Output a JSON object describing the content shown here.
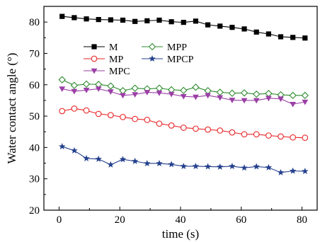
{
  "chart_data": {
    "type": "line",
    "title": "",
    "xlabel": "time (s)",
    "ylabel": "Water contact angle (°)",
    "xlim": [
      -5,
      85
    ],
    "ylim": [
      20,
      85
    ],
    "xticks": [
      0,
      20,
      40,
      60,
      80
    ],
    "yticks": [
      20,
      30,
      40,
      50,
      60,
      70,
      80
    ],
    "x_tick_labels": [
      "0",
      "20",
      "40",
      "60",
      "80"
    ],
    "y_tick_labels": [
      "20",
      "30",
      "40",
      "50",
      "60",
      "70",
      "80"
    ],
    "grid": false,
    "legend_placement": "top-center",
    "x": [
      1,
      5,
      9,
      13,
      17,
      21,
      25,
      29,
      33,
      37,
      41,
      45,
      49,
      53,
      57,
      61,
      65,
      69,
      73,
      77,
      81
    ],
    "series": [
      {
        "name": "M",
        "color": "#000000",
        "marker": "square-filled",
        "values": [
          81.8,
          81.4,
          81.0,
          80.8,
          80.7,
          80.6,
          80.2,
          80.4,
          80.6,
          80.1,
          79.9,
          80.3,
          79.1,
          78.7,
          78.3,
          77.8,
          76.8,
          76.2,
          75.3,
          75.1,
          74.9
        ]
      },
      {
        "name": "MPP",
        "color": "#2e8b2e",
        "marker": "diamond-open",
        "values": [
          61.6,
          59.8,
          60.2,
          60.1,
          59.6,
          58.1,
          58.9,
          58.7,
          58.9,
          58.4,
          58.2,
          59.2,
          58.1,
          57.6,
          57.3,
          57.4,
          57.0,
          57.2,
          56.8,
          56.6,
          56.6
        ]
      },
      {
        "name": "MP",
        "color": "#e8262a",
        "marker": "circle-open",
        "values": [
          51.6,
          52.4,
          51.8,
          50.7,
          50.3,
          49.7,
          49.1,
          48.8,
          47.6,
          47.0,
          46.3,
          46.0,
          45.7,
          45.4,
          44.8,
          44.2,
          44.2,
          43.8,
          43.5,
          43.2,
          43.1
        ]
      },
      {
        "name": "MPCP",
        "color": "#24408e",
        "marker": "star-filled",
        "values": [
          40.3,
          39.0,
          36.5,
          36.3,
          34.5,
          36.2,
          35.6,
          34.9,
          34.9,
          34.6,
          34.0,
          34.0,
          33.9,
          33.8,
          34.0,
          33.5,
          33.9,
          33.6,
          32.0,
          32.5,
          32.4
        ]
      },
      {
        "name": "MPC",
        "color": "#9b3fa6",
        "marker": "triangle-down-filled",
        "values": [
          58.7,
          57.9,
          58.3,
          58.7,
          57.8,
          56.6,
          56.9,
          57.6,
          57.4,
          57.0,
          56.3,
          56.1,
          56.6,
          55.9,
          55.1,
          55.0,
          55.0,
          55.7,
          55.5,
          53.8,
          54.5
        ]
      }
    ]
  }
}
